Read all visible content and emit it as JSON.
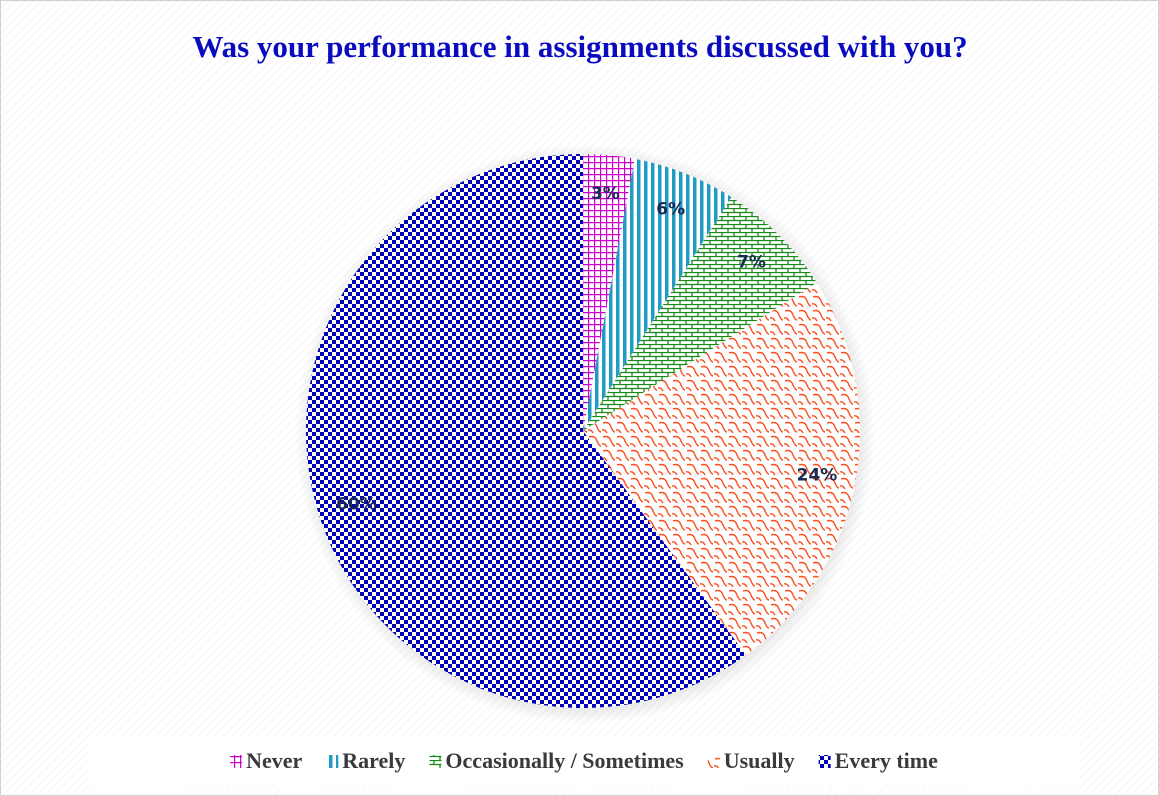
{
  "chart_data": {
    "type": "pie",
    "title": "Was your performance in assignments discussed with you?",
    "categories": [
      "Never",
      "Rarely",
      "Occasionally / Sometimes",
      "Usually",
      "Every time"
    ],
    "values": [
      3,
      6,
      7,
      24,
      60
    ],
    "value_labels": [
      "3%",
      "6%",
      "7%",
      "24%",
      "60%"
    ],
    "colors": [
      "#cc00cc",
      "#1f9bc4",
      "#1a8a1a",
      "#ff4a1a",
      "#0000b4"
    ],
    "legend": "bottom"
  }
}
